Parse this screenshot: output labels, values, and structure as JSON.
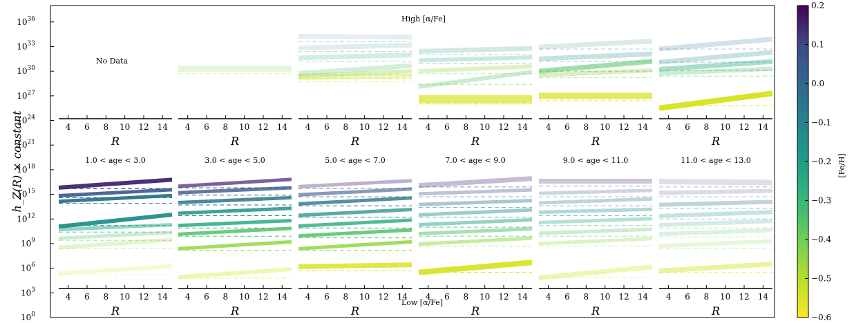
{
  "chart_data": {
    "type": "line",
    "ylabel": "h_Z(R) × constant",
    "y_scale": "log",
    "ylim_exponent": [
      0,
      38
    ],
    "y_ticks": [
      "10^0",
      "10^3",
      "10^6",
      "10^9",
      "10^12",
      "10^15",
      "10^18",
      "10^21",
      "10^24",
      "10^27",
      "10^30",
      "10^33",
      "10^36"
    ],
    "x_ticks": [
      "4",
      "6",
      "8",
      "10",
      "12",
      "14"
    ],
    "xlim": [
      3,
      15
    ],
    "xlabel": "R",
    "top_row_label": "High [α/Fe]",
    "bottom_row_label": "Low [α/Fe]",
    "no_data_label": "No Data",
    "colorbar": {
      "label": "[Fe/H]",
      "range": [
        -0.6,
        0.2
      ],
      "ticks": [
        "0.2",
        "0.1",
        "0.0",
        "−0.1",
        "−0.2",
        "−0.3",
        "−0.4",
        "−0.5",
        "−0.6"
      ],
      "colormap": "viridis_r"
    },
    "panels": [
      {
        "row": "low",
        "title": "1.0 < age < 3.0",
        "series": [
          {
            "feh": 0.15,
            "a": 16.3,
            "b": 0.08,
            "alpha": 0.95,
            "w": 6
          },
          {
            "feh": 0.05,
            "a": 15.2,
            "b": 0.06,
            "alpha": 0.9,
            "w": 5
          },
          {
            "feh": -0.05,
            "a": 14.5,
            "b": 0.06,
            "alpha": 0.95,
            "w": 5
          },
          {
            "feh": -0.15,
            "a": 11.8,
            "b": 0.12,
            "alpha": 0.95,
            "w": 6
          },
          {
            "feh": -0.25,
            "a": 11.0,
            "b": 0.05,
            "alpha": 0.5,
            "w": 5
          },
          {
            "feh": -0.35,
            "a": 10.0,
            "b": 0.06,
            "alpha": 0.3,
            "w": 5
          },
          {
            "feh": -0.45,
            "a": 9.0,
            "b": 0.08,
            "alpha": 0.25,
            "w": 6
          },
          {
            "feh": -0.55,
            "a": 5.8,
            "b": 0.07,
            "alpha": 0.2,
            "w": 6
          }
        ]
      },
      {
        "row": "low",
        "title": "3.0 < age < 5.0",
        "series": [
          {
            "feh": 0.15,
            "a": 16.4,
            "b": 0.07,
            "alpha": 0.7,
            "w": 5
          },
          {
            "feh": 0.05,
            "a": 15.5,
            "b": 0.05,
            "alpha": 0.8,
            "w": 5
          },
          {
            "feh": -0.05,
            "a": 14.3,
            "b": 0.05,
            "alpha": 0.85,
            "w": 5
          },
          {
            "feh": -0.15,
            "a": 13.0,
            "b": 0.05,
            "alpha": 0.85,
            "w": 5
          },
          {
            "feh": -0.25,
            "a": 11.5,
            "b": 0.05,
            "alpha": 0.85,
            "w": 5
          },
          {
            "feh": -0.35,
            "a": 10.5,
            "b": 0.06,
            "alpha": 0.85,
            "w": 5
          },
          {
            "feh": -0.45,
            "a": 8.8,
            "b": 0.07,
            "alpha": 0.85,
            "w": 5
          },
          {
            "feh": -0.55,
            "a": 5.4,
            "b": 0.08,
            "alpha": 0.35,
            "w": 6
          }
        ]
      },
      {
        "row": "low",
        "title": "5.0 < age < 7.0",
        "series": [
          {
            "feh": 0.15,
            "a": 16.3,
            "b": 0.06,
            "alpha": 0.35,
            "w": 5
          },
          {
            "feh": 0.05,
            "a": 15.3,
            "b": 0.06,
            "alpha": 0.6,
            "w": 5
          },
          {
            "feh": -0.05,
            "a": 14.2,
            "b": 0.06,
            "alpha": 0.8,
            "w": 5
          },
          {
            "feh": -0.15,
            "a": 12.8,
            "b": 0.06,
            "alpha": 0.75,
            "w": 5
          },
          {
            "feh": -0.25,
            "a": 11.5,
            "b": 0.06,
            "alpha": 0.8,
            "w": 5
          },
          {
            "feh": -0.35,
            "a": 10.3,
            "b": 0.06,
            "alpha": 0.85,
            "w": 5
          },
          {
            "feh": -0.45,
            "a": 8.8,
            "b": 0.07,
            "alpha": 0.85,
            "w": 5
          },
          {
            "feh": -0.55,
            "a": 6.3,
            "b": 0.02,
            "alpha": 0.85,
            "w": 7
          }
        ]
      },
      {
        "row": "low",
        "title": "7.0 < age < 9.0",
        "series": [
          {
            "feh": 0.15,
            "a": 16.5,
            "b": 0.07,
            "alpha": 0.3,
            "w": 7
          },
          {
            "feh": 0.05,
            "a": 15.3,
            "b": 0.04,
            "alpha": 0.35,
            "w": 5
          },
          {
            "feh": -0.05,
            "a": 14.0,
            "b": 0.04,
            "alpha": 0.4,
            "w": 5
          },
          {
            "feh": -0.15,
            "a": 12.8,
            "b": 0.05,
            "alpha": 0.45,
            "w": 5
          },
          {
            "feh": -0.25,
            "a": 11.6,
            "b": 0.05,
            "alpha": 0.5,
            "w": 5
          },
          {
            "feh": -0.35,
            "a": 10.5,
            "b": 0.05,
            "alpha": 0.5,
            "w": 5
          },
          {
            "feh": -0.45,
            "a": 9.3,
            "b": 0.06,
            "alpha": 0.5,
            "w": 5
          },
          {
            "feh": -0.55,
            "a": 6.1,
            "b": 0.1,
            "alpha": 0.95,
            "w": 8
          }
        ]
      },
      {
        "row": "low",
        "title": "9.0 < age < 11.0",
        "series": [
          {
            "feh": 0.15,
            "a": 16.6,
            "b": 0.0,
            "alpha": 0.25,
            "w": 7
          },
          {
            "feh": 0.05,
            "a": 15.3,
            "b": 0.03,
            "alpha": 0.25,
            "w": 5
          },
          {
            "feh": -0.05,
            "a": 14.2,
            "b": 0.04,
            "alpha": 0.3,
            "w": 5
          },
          {
            "feh": -0.15,
            "a": 13.0,
            "b": 0.03,
            "alpha": 0.35,
            "w": 5
          },
          {
            "feh": -0.25,
            "a": 11.8,
            "b": 0.04,
            "alpha": 0.35,
            "w": 5
          },
          {
            "feh": -0.35,
            "a": 10.5,
            "b": 0.04,
            "alpha": 0.3,
            "w": 5
          },
          {
            "feh": -0.45,
            "a": 9.3,
            "b": 0.05,
            "alpha": 0.3,
            "w": 5
          },
          {
            "feh": -0.55,
            "a": 5.5,
            "b": 0.11,
            "alpha": 0.35,
            "w": 7
          }
        ]
      },
      {
        "row": "low",
        "title": "11.0 < age < 13.0",
        "series": [
          {
            "feh": 0.15,
            "a": 16.5,
            "b": -0.01,
            "alpha": 0.15,
            "w": 8
          },
          {
            "feh": 0.05,
            "a": 15.3,
            "b": 0.02,
            "alpha": 0.2,
            "w": 6
          },
          {
            "feh": -0.05,
            "a": 13.9,
            "b": 0.03,
            "alpha": 0.3,
            "w": 6
          },
          {
            "feh": -0.15,
            "a": 12.6,
            "b": 0.04,
            "alpha": 0.25,
            "w": 6
          },
          {
            "feh": -0.25,
            "a": 11.5,
            "b": 0.04,
            "alpha": 0.2,
            "w": 6
          },
          {
            "feh": -0.35,
            "a": 10.4,
            "b": 0.04,
            "alpha": 0.2,
            "w": 6
          },
          {
            "feh": -0.45,
            "a": 9.0,
            "b": 0.05,
            "alpha": 0.2,
            "w": 6
          },
          {
            "feh": -0.55,
            "a": 6.1,
            "b": 0.07,
            "alpha": 0.45,
            "w": 7
          }
        ]
      },
      {
        "row": "high",
        "title": "",
        "no_data": true,
        "series": []
      },
      {
        "row": "high",
        "title": "",
        "series": [
          {
            "feh": -0.45,
            "a": 30.3,
            "b": 0.0,
            "alpha": 0.2,
            "w": 9
          }
        ]
      },
      {
        "row": "high",
        "title": "",
        "series": [
          {
            "feh": -0.05,
            "a": 34.2,
            "b": -0.01,
            "alpha": 0.12,
            "w": 7
          },
          {
            "feh": -0.15,
            "a": 33.0,
            "b": 0.03,
            "alpha": 0.15,
            "w": 7
          },
          {
            "feh": -0.25,
            "a": 31.8,
            "b": 0.03,
            "alpha": 0.2,
            "w": 7
          },
          {
            "feh": -0.35,
            "a": 30.2,
            "b": 0.08,
            "alpha": 0.25,
            "w": 7
          },
          {
            "feh": -0.45,
            "a": 29.7,
            "b": 0.05,
            "alpha": 0.35,
            "w": 6
          },
          {
            "feh": -0.55,
            "a": 29.3,
            "b": 0.02,
            "alpha": 0.35,
            "w": 6
          }
        ]
      },
      {
        "row": "high",
        "title": "",
        "series": [
          {
            "feh": -0.15,
            "a": 32.6,
            "b": 0.03,
            "alpha": 0.2,
            "w": 7
          },
          {
            "feh": -0.25,
            "a": 31.5,
            "b": 0.03,
            "alpha": 0.25,
            "w": 6
          },
          {
            "feh": -0.35,
            "a": 29.0,
            "b": 0.15,
            "alpha": 0.3,
            "w": 6
          },
          {
            "feh": -0.45,
            "a": 30.3,
            "b": 0.05,
            "alpha": 0.3,
            "w": 6
          },
          {
            "feh": -0.55,
            "a": 26.6,
            "b": 0.0,
            "alpha": 0.7,
            "w": 12
          }
        ]
      },
      {
        "row": "high",
        "title": "",
        "series": [
          {
            "feh": -0.05,
            "a": 33.3,
            "b": 0.06,
            "alpha": 0.15,
            "w": 7
          },
          {
            "feh": -0.15,
            "a": 31.8,
            "b": 0.05,
            "alpha": 0.25,
            "w": 7
          },
          {
            "feh": -0.35,
            "a": 30.6,
            "b": 0.1,
            "alpha": 0.55,
            "w": 7
          },
          {
            "feh": -0.45,
            "a": 29.8,
            "b": 0.05,
            "alpha": 0.35,
            "w": 6
          },
          {
            "feh": -0.55,
            "a": 27.0,
            "b": 0.0,
            "alpha": 0.75,
            "w": 9
          }
        ]
      },
      {
        "row": "high",
        "title": "",
        "series": [
          {
            "feh": -0.05,
            "a": 33.3,
            "b": 0.1,
            "alpha": 0.2,
            "w": 7
          },
          {
            "feh": -0.15,
            "a": 31.7,
            "b": 0.1,
            "alpha": 0.25,
            "w": 7
          },
          {
            "feh": -0.25,
            "a": 30.7,
            "b": 0.08,
            "alpha": 0.4,
            "w": 7
          },
          {
            "feh": -0.35,
            "a": 30.0,
            "b": 0.05,
            "alpha": 0.3,
            "w": 6
          },
          {
            "feh": -0.55,
            "a": 26.4,
            "b": 0.15,
            "alpha": 1.0,
            "w": 8
          }
        ]
      }
    ]
  }
}
